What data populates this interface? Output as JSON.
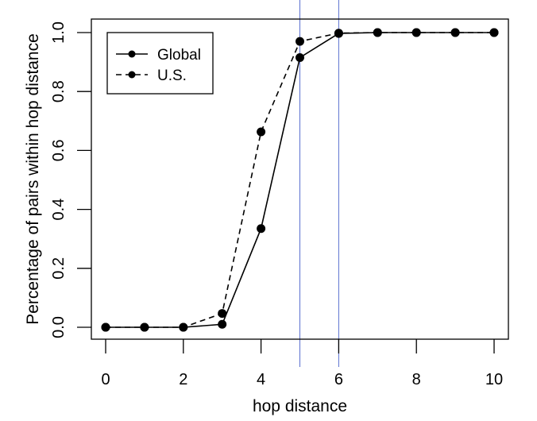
{
  "chart_data": {
    "type": "line",
    "xlabel": "hop distance",
    "ylabel": "Percentage of pairs within hop distance",
    "xlim": [
      0,
      10
    ],
    "ylim": [
      0,
      1
    ],
    "x_ticks": [
      {
        "value": 0,
        "label": "0"
      },
      {
        "value": 2,
        "label": "2"
      },
      {
        "value": 4,
        "label": "4"
      },
      {
        "value": 6,
        "label": "6"
      },
      {
        "value": 8,
        "label": "8"
      },
      {
        "value": 10,
        "label": "10"
      }
    ],
    "y_ticks": [
      {
        "value": 0,
        "label": "0.0"
      },
      {
        "value": 0.2,
        "label": "0.2"
      },
      {
        "value": 0.4,
        "label": "0.4"
      },
      {
        "value": 0.6,
        "label": "0.6"
      },
      {
        "value": 0.8,
        "label": "0.8"
      },
      {
        "value": 1.0,
        "label": "1.0"
      }
    ],
    "x": [
      0,
      1,
      2,
      3,
      4,
      5,
      6,
      7,
      8,
      9,
      10
    ],
    "series": [
      {
        "name": "Global",
        "linestyle": "solid",
        "values": [
          0,
          0,
          0,
          0.01,
          0.335,
          0.915,
          0.997,
          1.0,
          1.0,
          1.0,
          1.0
        ]
      },
      {
        "name": "U.S.",
        "linestyle": "dashed",
        "values": [
          0,
          0,
          0,
          0.047,
          0.663,
          0.97,
          0.998,
          1.0,
          1.0,
          1.0,
          1.0
        ]
      }
    ],
    "reference_lines": {
      "x": [
        5,
        6
      ],
      "color": "#5a6fcf"
    },
    "legend_position": "top-left",
    "grid": false
  }
}
